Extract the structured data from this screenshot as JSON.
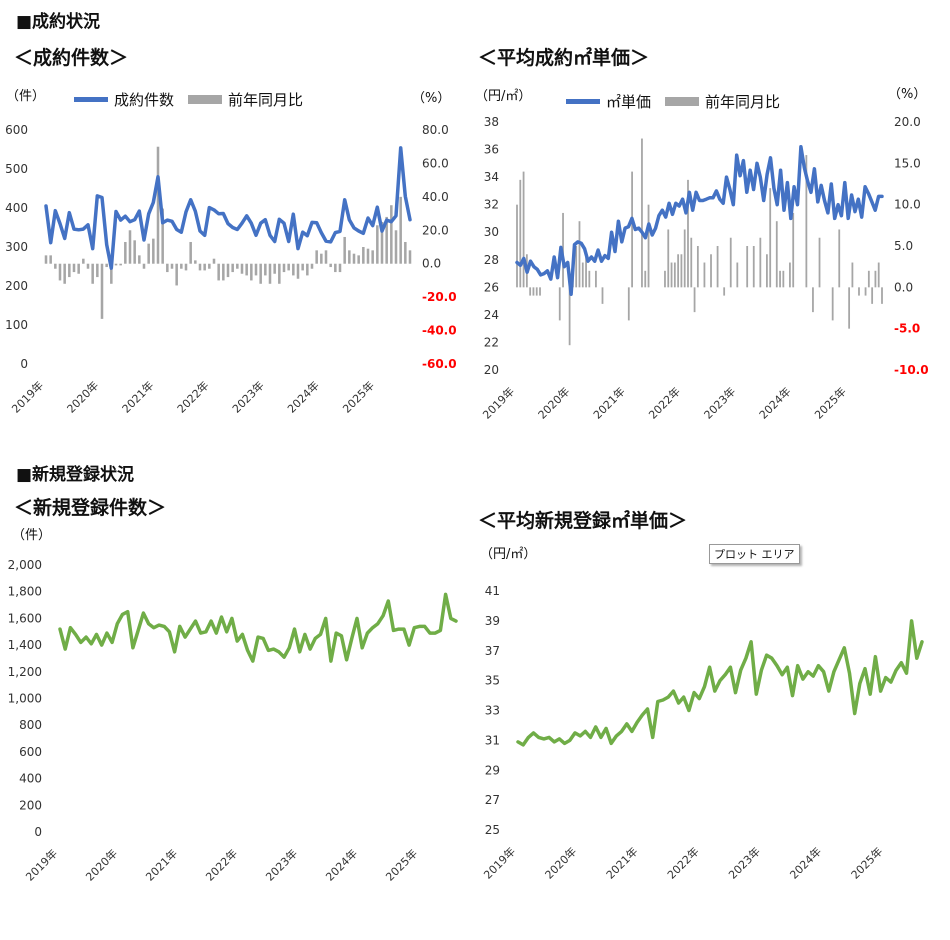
{
  "sections": {
    "contracts": "■成約状況",
    "registrations": "■新規登録状況"
  },
  "tooltip": "プロット エリア",
  "colors": {
    "line_blue": "#4472c4",
    "bar_gray": "#a6a6a6",
    "line_green": "#70ad47",
    "neg_red": "#ff0000"
  },
  "chart_data": [
    {
      "type": "bar",
      "title": "＜成約件数＞",
      "ylabel": "（件）",
      "y2label": "（%）",
      "legend": [
        "成約件数",
        "前年同月比"
      ],
      "xticks": [
        "2019年",
        "2020年",
        "2021年",
        "2022年",
        "2023年",
        "2024年",
        "2025年"
      ],
      "ylim": [
        0,
        600
      ],
      "yticks": [
        "600",
        "500",
        "400",
        "300",
        "200",
        "100",
        "0"
      ],
      "y2lim": [
        -60,
        80
      ],
      "y2ticks": [
        "80.0",
        "60.0",
        "40.0",
        "20.0",
        "0.0",
        "-20.0",
        "-40.0",
        "-60.0"
      ],
      "series": [
        {
          "name": "成約件数",
          "kind": "line",
          "axis": "left",
          "values": [
            405,
            311,
            393,
            360,
            322,
            388,
            346,
            344,
            346,
            357,
            296,
            431,
            427,
            306,
            246,
            391,
            369,
            379,
            365,
            370,
            392,
            318,
            385,
            414,
            480,
            362,
            369,
            366,
            345,
            338,
            390,
            421,
            392,
            341,
            330,
            401,
            395,
            385,
            386,
            360,
            350,
            345,
            361,
            380,
            361,
            330,
            361,
            370,
            330,
            314,
            371,
            361,
            314,
            384,
            296,
            338,
            329,
            363,
            362,
            337,
            315,
            313,
            337,
            340,
            421,
            370,
            349,
            341,
            335,
            374,
            355,
            402,
            341,
            369,
            365,
            380,
            554,
            430,
            370
          ],
          "color": "#4472c4"
        },
        {
          "name": "前年同月比",
          "kind": "bar",
          "axis": "right",
          "values": [
            5,
            5,
            -3,
            -10,
            -12,
            -8,
            -5,
            -6,
            3,
            -3,
            -12,
            -8,
            -33,
            -2,
            -12,
            -1,
            -1,
            13,
            20,
            14,
            5,
            -3,
            12,
            15,
            70,
            33,
            -5,
            -3,
            -13,
            -3,
            -4,
            13,
            2,
            -4,
            -4,
            -3,
            3,
            -10,
            -10,
            -8,
            -5,
            -3,
            -6,
            -7,
            -10,
            -7,
            -12,
            -7,
            -12,
            -6,
            -12,
            -5,
            -4,
            -7,
            -9,
            -4,
            -7,
            -3,
            8,
            6,
            8,
            -2,
            -5,
            -5,
            16,
            8,
            6,
            5,
            10,
            9,
            8,
            23,
            25,
            28,
            35,
            20,
            40,
            13,
            8
          ]
        }
      ]
    },
    {
      "type": "bar",
      "title": "＜平均成約㎡単価＞",
      "ylabel": "（円/㎡）",
      "y2label": "（%）",
      "legend": [
        "㎡単価",
        "前年同月比"
      ],
      "xticks": [
        "2019年",
        "2020年",
        "2021年",
        "2022年",
        "2023年",
        "2024年",
        "2025年"
      ],
      "ylim": [
        20,
        38
      ],
      "yticks": [
        "38",
        "36",
        "34",
        "32",
        "30",
        "28",
        "26",
        "24",
        "22",
        "20"
      ],
      "y2lim": [
        -10,
        20
      ],
      "y2ticks": [
        "20.0",
        "15.0",
        "10.0",
        "5.0",
        "0.0",
        "-5.0",
        "-10.0"
      ],
      "series": [
        {
          "name": "㎡単価",
          "kind": "line",
          "axis": "left",
          "values": [
            27.8,
            27.6,
            28.1,
            27.1,
            27.9,
            27.5,
            27.3,
            26.9,
            27.0,
            27.2,
            26.6,
            28.2,
            26.7,
            28.9,
            27.5,
            27.8,
            25.5,
            29.1,
            29.3,
            29.2,
            28.8,
            27.9,
            28.2,
            27.9,
            28.7,
            27.9,
            28.3,
            28.1,
            30.0,
            28.6,
            30.8,
            29.3,
            30.3,
            30.4,
            31.0,
            30.2,
            30.3,
            30.0,
            29.6,
            30.6,
            29.8,
            30.3,
            31.2,
            31.6,
            31.1,
            32.1,
            31.3,
            32.1,
            31.9,
            32.4,
            31.4,
            32.9,
            31.6,
            32.9,
            32.3,
            32.3,
            32.4,
            32.5,
            32.5,
            33.0,
            32.4,
            32.1,
            34.0,
            33.1,
            32.0,
            35.6,
            34.1,
            35.2,
            32.9,
            34.5,
            33.1,
            35.0,
            34.0,
            32.3,
            34.2,
            35.4,
            33.2,
            32.0,
            34.5,
            31.6,
            33.6,
            31.0,
            33.3,
            32.0,
            36.2,
            34.7,
            33.7,
            32.9,
            34.6,
            32.2,
            33.4,
            32.3,
            31.4,
            33.5,
            31.0,
            32.0,
            31.2,
            33.6,
            31.0,
            32.7,
            31.5,
            32.4,
            31.1,
            33.3,
            32.8,
            32.2,
            31.6,
            32.6,
            32.6
          ],
          "color": "#4472c4"
        },
        {
          "name": "前年同月比",
          "kind": "bar",
          "axis": "right",
          "values": [
            10,
            13,
            14,
            4,
            -1,
            -1,
            -1,
            -1,
            0,
            0,
            0,
            0,
            0,
            -4,
            9,
            0,
            -7,
            2,
            5,
            8,
            3,
            4,
            2,
            0,
            2,
            0,
            -2,
            0,
            0,
            0,
            0,
            0,
            0,
            0,
            -4,
            14,
            0,
            0,
            18,
            2,
            10,
            0,
            0,
            0,
            0,
            2,
            7,
            3,
            3,
            4,
            4,
            7,
            13,
            6,
            -3,
            5,
            0,
            3,
            0,
            4,
            0,
            5,
            0,
            -1,
            0,
            6,
            0,
            3,
            0,
            0,
            5,
            0,
            5,
            0,
            6,
            0,
            4,
            12,
            0,
            8,
            2,
            2,
            0,
            3,
            9,
            0,
            0,
            0,
            16,
            0,
            -3,
            0,
            6,
            0,
            0,
            0,
            -4,
            0,
            7,
            0,
            0,
            -5,
            3,
            0,
            -1,
            0,
            -1,
            2,
            -2,
            2,
            3,
            -2
          ],
          "color": "#a6a6a6"
        }
      ]
    },
    {
      "type": "line",
      "title": "＜新規登録件数＞",
      "ylabel": "（件）",
      "xticks": [
        "2019年",
        "2020年",
        "2021年",
        "2022年",
        "2023年",
        "2024年",
        "2025年"
      ],
      "ylim": [
        0,
        2000
      ],
      "yticks": [
        "2,000",
        "1,800",
        "1,600",
        "1,400",
        "1,200",
        "1,000",
        "800",
        "600",
        "400",
        "200",
        "0"
      ],
      "series": [
        {
          "name": "",
          "kind": "line",
          "values": [
            1520,
            1370,
            1530,
            1480,
            1420,
            1460,
            1410,
            1480,
            1400,
            1490,
            1420,
            1560,
            1630,
            1650,
            1380,
            1510,
            1640,
            1560,
            1530,
            1550,
            1540,
            1500,
            1350,
            1540,
            1460,
            1520,
            1580,
            1490,
            1500,
            1580,
            1490,
            1610,
            1500,
            1600,
            1430,
            1480,
            1360,
            1280,
            1460,
            1450,
            1360,
            1370,
            1350,
            1310,
            1380,
            1520,
            1350,
            1480,
            1370,
            1450,
            1480,
            1600,
            1280,
            1490,
            1470,
            1290,
            1450,
            1600,
            1380,
            1490,
            1530,
            1560,
            1620,
            1730,
            1510,
            1520,
            1520,
            1400,
            1530,
            1540,
            1540,
            1490,
            1490,
            1510,
            1780,
            1600,
            1580
          ],
          "color": "#70ad47"
        }
      ]
    },
    {
      "type": "line",
      "title": "＜平均新規登録㎡単価＞",
      "ylabel": "（円/㎡）",
      "xticks": [
        "2019年",
        "2020年",
        "2021年",
        "2022年",
        "2023年",
        "2024年",
        "2025年"
      ],
      "ylim": [
        25,
        41
      ],
      "yticks": [
        "41",
        "39",
        "37",
        "35",
        "33",
        "31",
        "29",
        "27",
        "25"
      ],
      "series": [
        {
          "name": "",
          "kind": "line",
          "values": [
            30.9,
            30.7,
            31.2,
            31.5,
            31.2,
            31.1,
            31.2,
            30.9,
            31.1,
            30.8,
            31.0,
            31.5,
            31.3,
            31.6,
            31.2,
            31.9,
            31.2,
            31.8,
            30.8,
            31.3,
            31.6,
            32.1,
            31.6,
            32.2,
            32.7,
            33.1,
            31.2,
            33.6,
            33.7,
            33.9,
            34.3,
            33.5,
            33.9,
            33.0,
            34.2,
            33.8,
            34.6,
            35.9,
            34.3,
            35.0,
            35.4,
            35.9,
            34.2,
            35.7,
            36.5,
            37.6,
            34.1,
            35.7,
            36.7,
            36.5,
            36.0,
            35.4,
            35.9,
            34.0,
            36.0,
            35.1,
            35.6,
            35.3,
            36.0,
            35.6,
            34.3,
            35.6,
            36.4,
            37.2,
            35.5,
            32.8,
            34.8,
            35.8,
            34.1,
            36.6,
            34.3,
            35.2,
            34.9,
            35.7,
            36.2,
            35.5,
            39.0,
            36.5,
            37.6
          ],
          "color": "#70ad47"
        }
      ]
    }
  ]
}
